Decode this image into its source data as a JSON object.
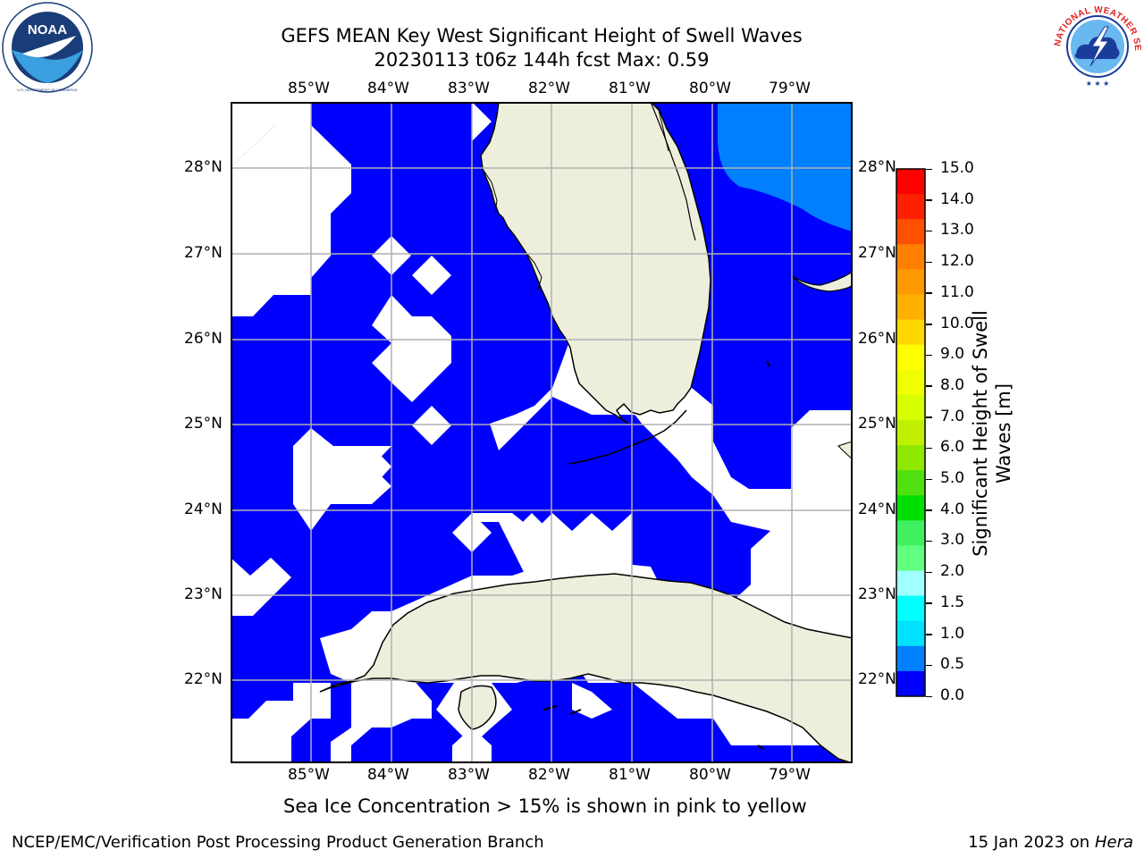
{
  "title": {
    "line1": "GEFS MEAN Key West Significant Height of Swell Waves",
    "line2": "20230113 t06z 144h fcst   Max: 0.59"
  },
  "logos": {
    "left": {
      "name": "noaa-logo",
      "text": "NOAA",
      "ring_text": "NATIONAL OCEANIC AND ATMOSPHERIC ADMINISTRATION · U.S. DEPARTMENT OF COMMERCE"
    },
    "right": {
      "name": "nws-logo",
      "ring_text": "NATIONAL WEATHER SERVICE"
    }
  },
  "map": {
    "lon_labels": [
      "85°W",
      "84°W",
      "83°W",
      "82°W",
      "81°W",
      "80°W",
      "79°W"
    ],
    "lat_labels": [
      "28°N",
      "27°N",
      "26°N",
      "25°N",
      "24°N",
      "23°N",
      "22°N"
    ],
    "lon_range": [
      -86.0,
      -78.25
    ],
    "lat_range": [
      21.1,
      28.8
    ],
    "colors": {
      "swell_0_05": "#0000ff",
      "swell_05_1": "#0080ff",
      "land": "#eeeedd",
      "ocean_no_data": "#ffffff",
      "grid": "#b0b0b0"
    }
  },
  "colorbar": {
    "title_line1": "Significant Height of Swell",
    "title_line2": "Waves [m]",
    "ticks": [
      "15.0",
      "14.0",
      "13.0",
      "12.0",
      "11.0",
      "10.0",
      "9.0",
      "8.0",
      "7.0",
      "6.0",
      "5.0",
      "4.0",
      "3.0",
      "2.0",
      "1.5",
      "1.0",
      "0.5",
      "0.0"
    ],
    "colors_top_to_bottom": [
      "#ff0000",
      "#ff2000",
      "#ff5000",
      "#ff8000",
      "#ff9900",
      "#ffb000",
      "#ffd800",
      "#ffff00",
      "#f0ff00",
      "#d8ff00",
      "#c0f000",
      "#90e800",
      "#50e010",
      "#00e000",
      "#40f060",
      "#60ff80",
      "#a0ffff",
      "#00ffff",
      "#00e0ff",
      "#0080ff",
      "#0000ff"
    ]
  },
  "note": "Sea Ice Concentration > 15% is shown in pink to yellow",
  "footer": {
    "left": "NCEP/EMC/Verification Post Processing Product Generation Branch",
    "right_date": "15 Jan 2023 on ",
    "right_machine": "Hera"
  }
}
